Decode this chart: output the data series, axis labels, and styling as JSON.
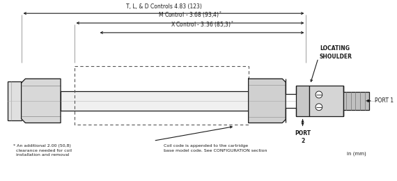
{
  "dim_line1_label": "T, L, & D Controls 4.83 (123)",
  "dim_line2_label": "M Control - 3.68 (93,4)",
  "dim_line3_label": "X Control - 3.36 (85,3)",
  "locating_shoulder": "LOCATING\nSHOULDER",
  "port1_label": "PORT 1",
  "port2_label": "PORT\n2",
  "units_label": "in (mm)",
  "footnote1": "* An additional 2.00 (50,8)\n  clearance needed for coil\n  installation and removal",
  "footnote2": "Coil code is appended to the cartridge\nbase model code. See CONFIGURATION section",
  "bg_color": "#ffffff",
  "line_color": "#1a1a1a",
  "dashed_color": "#555555"
}
